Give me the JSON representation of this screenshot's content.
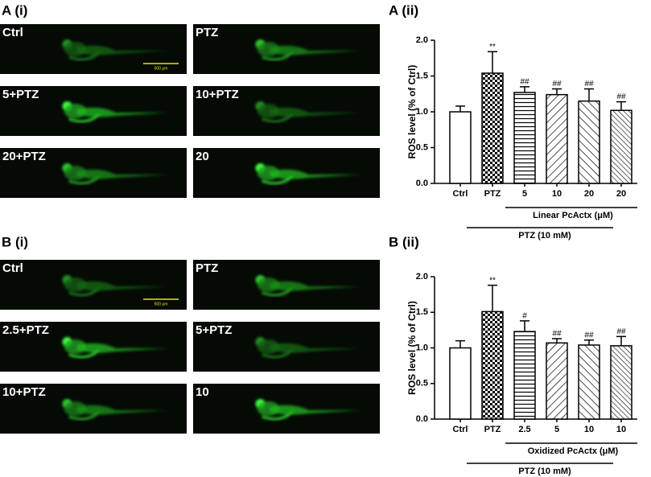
{
  "panels": {
    "a_images": "A (i)",
    "a_chart": "A (ii)",
    "b_images": "B (i)",
    "b_chart": "B (ii)"
  },
  "images_a": [
    "Ctrl",
    "PTZ",
    "5+PTZ",
    "10+PTZ",
    "20+PTZ",
    "20"
  ],
  "images_b": [
    "Ctrl",
    "PTZ",
    "2.5+PTZ",
    "5+PTZ",
    "10+PTZ",
    "10"
  ],
  "scale_bar": "500 μm",
  "chart_data": [
    {
      "type": "bar",
      "y_label": "ROS level (% of Ctrl)",
      "categories": [
        "Ctrl",
        "PTZ",
        "5",
        "10",
        "20",
        "20"
      ],
      "values": [
        1.0,
        1.54,
        1.27,
        1.24,
        1.15,
        1.02
      ],
      "errors": [
        0.08,
        0.3,
        0.08,
        0.08,
        0.17,
        0.12
      ],
      "annotations": [
        null,
        "**",
        "##",
        "##",
        "##",
        "##"
      ],
      "group_labels": [
        "Linear PcActx (μM)",
        "PTZ (10 mM)"
      ],
      "ylim": [
        0,
        2.0
      ],
      "yticks": [
        {
          "value": 0,
          "label": "0.0"
        },
        0.5,
        {
          "value": 1,
          "label": "1.0"
        },
        1.5,
        {
          "value": 2,
          "label": "2.0"
        }
      ]
    },
    {
      "type": "bar",
      "y_label": "ROS level (% of Ctrl)",
      "categories": [
        "Ctrl",
        "PTZ",
        "2.5",
        "5",
        "10",
        "10"
      ],
      "values": [
        1.0,
        1.51,
        1.23,
        1.07,
        1.04,
        1.03
      ],
      "errors": [
        0.1,
        0.37,
        0.15,
        0.06,
        0.07,
        0.13
      ],
      "annotations": [
        null,
        "**",
        "#",
        "##",
        "##",
        "##"
      ],
      "group_labels": [
        "Oxidized PcActx (μM)",
        "PTZ (10 mM)"
      ],
      "ylim": [
        0,
        2.0
      ],
      "yticks": [
        {
          "value": 0,
          "label": "0.0"
        },
        0.5,
        {
          "value": 1,
          "label": "1.0"
        },
        1.5,
        {
          "value": 2,
          "label": "2.0"
        }
      ]
    }
  ]
}
